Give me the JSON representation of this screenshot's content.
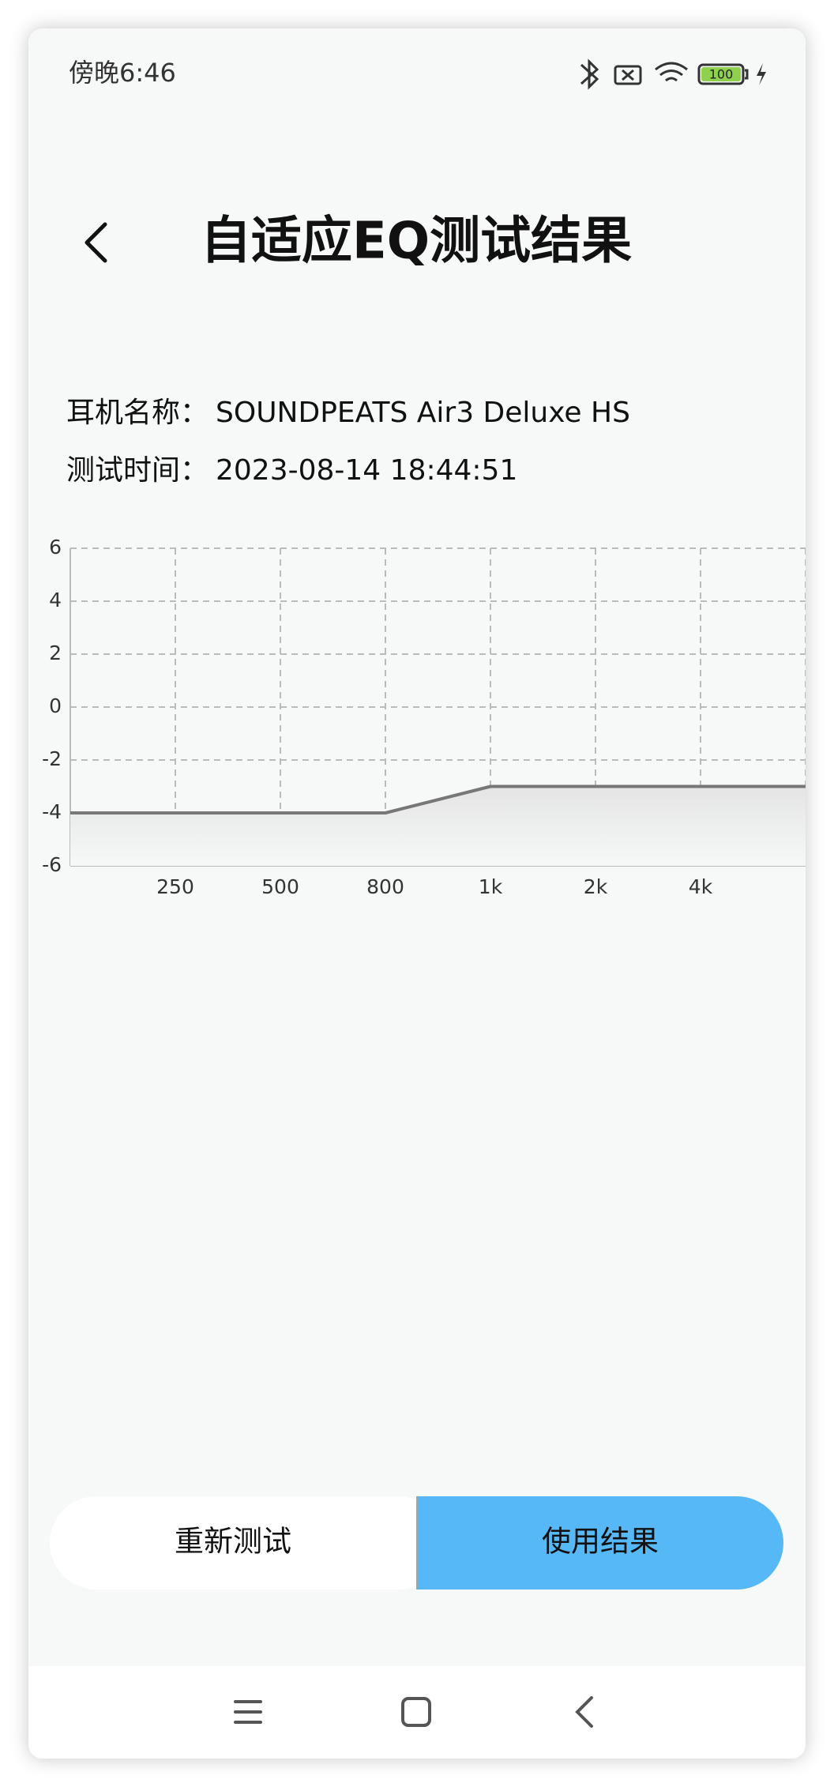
{
  "status_bar": {
    "time": "傍晚6:46",
    "battery": "100"
  },
  "header": {
    "title": "自适应EQ测试结果"
  },
  "info": [
    {
      "label": "耳机名称：",
      "value": "SOUNDPEATS Air3 Deluxe HS"
    },
    {
      "label": "测试时间：",
      "value": "2023-08-14 18:44:51"
    }
  ],
  "chart_data": {
    "type": "line",
    "categories": [
      null,
      "250",
      "500",
      "800",
      "1k",
      "2k",
      "4k",
      null
    ],
    "values": [
      -4,
      -4,
      -4,
      -4,
      -3,
      -3,
      -3,
      -3
    ],
    "color": "#777777",
    "ylim": [
      -6,
      6
    ],
    "yticks": [
      -6,
      -4,
      -2,
      0,
      2,
      4,
      6
    ],
    "grid": true
  },
  "buttons": [
    "重新测试",
    "使用结果"
  ]
}
